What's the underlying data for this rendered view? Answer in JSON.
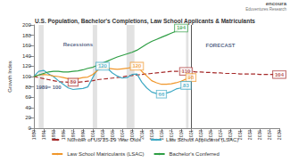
{
  "chart_data": {
    "type": "line",
    "title": "U.S. Population, Bachelor's Completions, Law School Applicants & Matriculants",
    "logo": [
      "encoura",
      "Eduventures Research"
    ],
    "y_label": "Growth Index",
    "x": [
      1989,
      1990,
      1991,
      1992,
      1993,
      1994,
      1995,
      1996,
      1997,
      1998,
      1999,
      2000,
      2001,
      2002,
      2003,
      2004,
      2005,
      2006,
      2007,
      2008,
      2009,
      2010,
      2011,
      2012,
      2013,
      2014,
      2015,
      2016,
      2017,
      2018,
      2019,
      2020,
      2021,
      2022,
      2023,
      2024,
      2025,
      2026,
      2027,
      2028,
      2029,
      2030,
      2031,
      2032,
      2033,
      2034,
      2035,
      2036,
      2037,
      2038,
      2039
    ],
    "series": [
      {
        "name": "Number of US 25-29 Year Olds",
        "color": "#a52a2a",
        "line_style": "dashed",
        "values": [
          100,
          98,
          96,
          94,
          92,
          90,
          89.5,
          89,
          89,
          89,
          90,
          91,
          92,
          94,
          95,
          96,
          97,
          98,
          99,
          101,
          102,
          103,
          104,
          105,
          106,
          107,
          108,
          109,
          110,
          110,
          110,
          110,
          110,
          109,
          109,
          108,
          108,
          107,
          107,
          106,
          106,
          106,
          105,
          105,
          105,
          105,
          104,
          104,
          104,
          104,
          104
        ]
      },
      {
        "name": "Law School Applicants (LSAC)",
        "color": "#3fa9c4",
        "line_style": "solid",
        "values": [
          100,
          110,
          112,
          105,
          100,
          92,
          85,
          78,
          75,
          76,
          77,
          80,
          98,
          115,
          120,
          116,
          107,
          101,
          97,
          98,
          104,
          105,
          89,
          78,
          70,
          67,
          66,
          68,
          71,
          76,
          78,
          83,
          null,
          null,
          null,
          null,
          null,
          null,
          null,
          null,
          null,
          null,
          null,
          null,
          null,
          null,
          null,
          null,
          null,
          null,
          null
        ]
      },
      {
        "name": "Law School Matriculants (LSAC)",
        "color": "#f0962a",
        "line_style": "solid",
        "values": [
          100,
          103,
          104,
          103,
          101,
          100,
          98,
          96,
          95,
          96,
          98,
          99,
          104,
          112,
          117,
          116,
          115,
          114,
          115,
          116,
          118,
          120,
          110,
          101,
          92,
          88,
          85,
          85,
          86,
          88,
          91,
          95,
          98,
          null,
          null,
          null,
          null,
          null,
          null,
          null,
          null,
          null,
          null,
          null,
          null,
          null,
          null,
          null,
          null,
          null,
          null
        ]
      },
      {
        "name": "Bachelor's Conferred",
        "color": "#2e9e44",
        "line_style": "solid",
        "values": [
          100,
          103,
          106,
          109,
          110,
          110,
          109,
          109,
          110,
          111,
          113,
          116,
          118,
          122,
          126,
          130,
          134,
          138,
          141,
          144,
          147,
          151,
          157,
          163,
          168,
          172,
          176,
          180,
          184,
          188,
          194,
          null,
          null,
          null,
          null,
          null,
          null,
          null,
          null,
          null,
          null,
          null,
          null,
          null,
          null,
          null,
          null,
          null,
          null,
          null,
          null
        ]
      }
    ],
    "xlim": [
      1989,
      2039
    ],
    "xticks": [
      1989,
      1991,
      1993,
      1995,
      1997,
      1999,
      2001,
      2003,
      2005,
      2007,
      2009,
      2011,
      2013,
      2015,
      2017,
      2019,
      2021,
      2023,
      2025,
      2027,
      2029,
      2031,
      2033,
      2035,
      2037,
      2039
    ],
    "ylim": [
      0,
      200
    ],
    "yticks": [
      0,
      20,
      40,
      60,
      80,
      100,
      120,
      140,
      160,
      180,
      200
    ],
    "grid": false,
    "legend": "bottom",
    "recessions": [
      [
        1990,
        1991
      ],
      [
        2001,
        2001.9
      ],
      [
        2007.9,
        2009.5
      ],
      [
        2020,
        2020.5
      ]
    ],
    "forecast_start": 2021,
    "annotations": [
      {
        "text": "194",
        "x": 2019,
        "y": 194,
        "series": "Bachelor's Conferred"
      },
      {
        "text": "120",
        "x": 2003,
        "y": 120,
        "series": "Law School Applicants (LSAC)"
      },
      {
        "text": "120",
        "x": 2010,
        "y": 120,
        "series": "Law School Matriculants (LSAC)"
      },
      {
        "text": "89",
        "x": 1997,
        "y": 89,
        "series": "Number of US 25-29 Year Olds"
      },
      {
        "text": "110",
        "x": 2020,
        "y": 110,
        "series": "Number of US 25-29 Year Olds"
      },
      {
        "text": "98",
        "x": 2021,
        "y": 98,
        "series": "Law School Matriculants (LSAC)"
      },
      {
        "text": "66",
        "x": 2015,
        "y": 66,
        "series": "Law School Applicants (LSAC)"
      },
      {
        "text": "83",
        "x": 2020,
        "y": 83,
        "series": "Law School Applicants (LSAC)"
      },
      {
        "text": "104",
        "x": 2039,
        "y": 104,
        "series": "Number of US 25-29 Year Olds"
      },
      {
        "text": "1989= 100",
        "x": 1992,
        "y": 80
      },
      {
        "text": "Recessions",
        "x": 1998,
        "y": 162
      },
      {
        "text": "FORECAST",
        "x": 2027,
        "y": 160
      }
    ]
  }
}
